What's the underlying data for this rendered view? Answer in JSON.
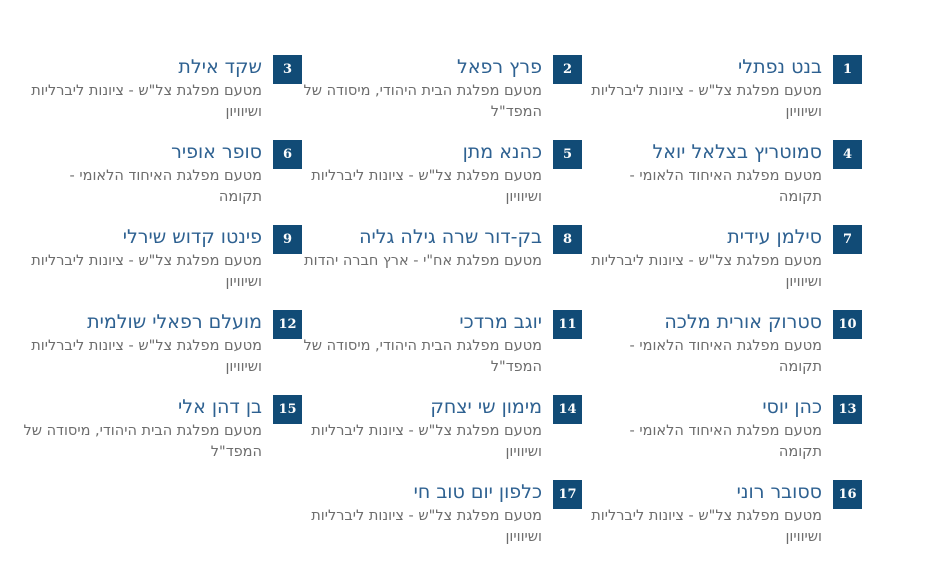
{
  "page": {
    "language": "he",
    "direction": "rtl",
    "background": "#ffffff"
  },
  "colors": {
    "badge_bg": "#114b76",
    "badge_text": "#fdfdfd",
    "name_text": "#2e6191",
    "party_text": "#6d6d6d"
  },
  "candidates": [
    {
      "number": "1",
      "name": "בנט נפתלי",
      "party": "מטעם מפלגת צל\"ש - ציונות ליברליות ושיוויון"
    },
    {
      "number": "2",
      "name": "פרץ רפאל",
      "party": "מטעם מפלגת הבית היהודי, מיסודה של המפד\"ל"
    },
    {
      "number": "3",
      "name": "שקד אילת",
      "party": "מטעם מפלגת צל\"ש - ציונות ליברליות ושיוויון"
    },
    {
      "number": "4",
      "name": "סמוטריץ בצלאל יואל",
      "party": "מטעם מפלגת האיחוד הלאומי - תקומה"
    },
    {
      "number": "5",
      "name": "כהנא מתן",
      "party": "מטעם מפלגת צל\"ש - ציונות ליברליות ושיוויון"
    },
    {
      "number": "6",
      "name": "סופר אופיר",
      "party": "מטעם מפלגת האיחוד הלאומי - תקומה"
    },
    {
      "number": "7",
      "name": "סילמן עידית",
      "party": "מטעם מפלגת צל\"ש - ציונות ליברליות ושיוויון"
    },
    {
      "number": "8",
      "name": "בק-דור שרה גילה גליה",
      "party": "מטעם מפלגת אח\"י - ארץ חברה יהדות"
    },
    {
      "number": "9",
      "name": "פינטו קדוש שירלי",
      "party": "מטעם מפלגת צל\"ש - ציונות ליברליות ושיוויון"
    },
    {
      "number": "10",
      "name": "סטרוק אורית מלכה",
      "party": "מטעם מפלגת האיחוד הלאומי - תקומה"
    },
    {
      "number": "11",
      "name": "יוגב מרדכי",
      "party": "מטעם מפלגת הבית היהודי, מיסודה של המפד\"ל"
    },
    {
      "number": "12",
      "name": "מועלם רפאלי שולמית",
      "party": "מטעם מפלגת צל\"ש - ציונות ליברליות ושיוויון"
    },
    {
      "number": "13",
      "name": "כהן יוסי",
      "party": "מטעם מפלגת האיחוד הלאומי - תקומה"
    },
    {
      "number": "14",
      "name": "מימון שי יצחק",
      "party": "מטעם מפלגת צל\"ש - ציונות ליברליות ושיוויון"
    },
    {
      "number": "15",
      "name": "בן דהן אלי",
      "party": "מטעם מפלגת הבית היהודי, מיסודה של המפד\"ל"
    },
    {
      "number": "16",
      "name": "ססובר רוני",
      "party": "מטעם מפלגת צל\"ש - ציונות ליברליות ושיוויון"
    },
    {
      "number": "17",
      "name": "כלפון יום טוב חי",
      "party": "מטעם מפלגת צל\"ש - ציונות ליברליות ושיוויון"
    }
  ]
}
